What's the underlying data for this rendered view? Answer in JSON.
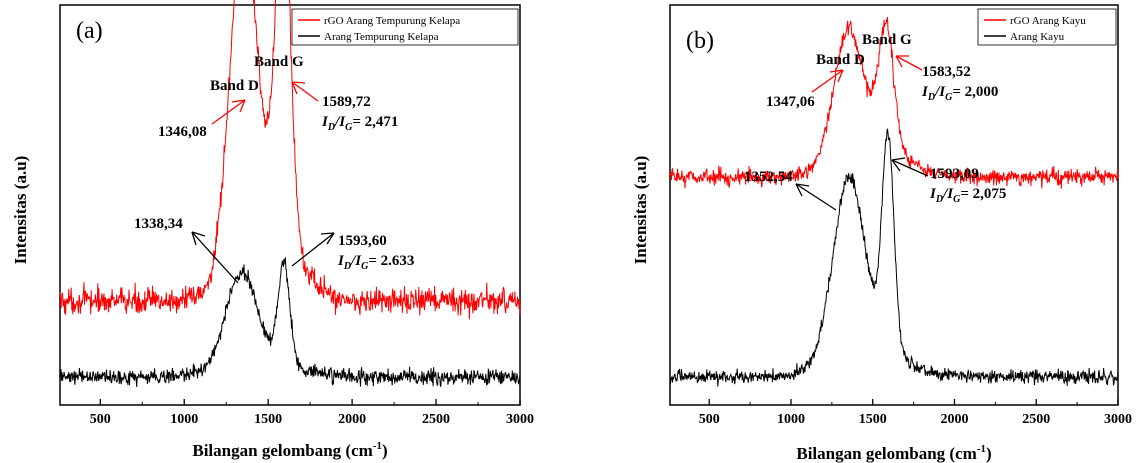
{
  "chart_data": [
    {
      "type": "line",
      "panel_label": "(a)",
      "xlabel": "Bilangan gelombang (cm",
      "xlabel_sup": "-1",
      "xlabel_end": ")",
      "ylabel": "Intensitas (a.u)",
      "xlim": [
        260,
        3000
      ],
      "xticks": [
        "500",
        "1000",
        "1500",
        "2000",
        "2500",
        "3000"
      ],
      "grid": false,
      "legend_position": "top-right",
      "series": [
        {
          "name": "rGO Arang Tempurung Kelapa",
          "color": "#ff0000",
          "baseline": 0.26,
          "noise": 0.055,
          "peaks": [
            [
              1346.08,
              0.75,
              75
            ],
            [
              1589.72,
              0.85,
              42
            ],
            [
              1480,
              0.28,
              160
            ]
          ]
        },
        {
          "name": "Arang Tempurung Kelapa",
          "color": "#000000",
          "baseline": 0.07,
          "noise": 0.033,
          "peaks": [
            [
              1338.34,
              0.22,
              90
            ],
            [
              1593.6,
              0.25,
              34
            ],
            [
              1450,
              0.05,
              200
            ]
          ]
        }
      ],
      "annotations": {
        "band_d": "Band D",
        "band_g": "Band G",
        "red_d_peak": "1346,08",
        "red_g_peak": "1589,72",
        "red_ratio": "= 2,471",
        "black_d_peak": "1338,34",
        "black_g_peak": "1593,60",
        "black_ratio": "= 2.633"
      }
    },
    {
      "type": "line",
      "panel_label": "(b)",
      "xlabel": "Bilangan gelombang (cm",
      "xlabel_sup": "-1",
      "xlabel_end": ")",
      "ylabel": "Intensitas (a.u)",
      "xlim": [
        260,
        3000
      ],
      "xticks": [
        "500",
        "1000",
        "1500",
        "2000",
        "2500",
        "3000"
      ],
      "grid": false,
      "legend_position": "top-right",
      "series": [
        {
          "name": "rGO Arang Kayu",
          "color": "#ff0000",
          "baseline": 0.57,
          "noise": 0.035,
          "peaks": [
            [
              1347.06,
              0.28,
              85
            ],
            [
              1583.52,
              0.29,
              45
            ],
            [
              1470,
              0.11,
              180
            ]
          ]
        },
        {
          "name": "Arang Kayu",
          "color": "#000000",
          "baseline": 0.07,
          "noise": 0.028,
          "peaks": [
            [
              1352.54,
              0.42,
              95
            ],
            [
              1593.09,
              0.53,
              36
            ],
            [
              1460,
              0.09,
              200
            ]
          ]
        }
      ],
      "annotations": {
        "band_d": "Band D",
        "band_g": "Band G",
        "red_d_peak": "1347,06",
        "red_g_peak": "1583,52",
        "red_ratio": "= 2,000",
        "black_d_peak": "1352,54",
        "black_g_peak": "1593,09",
        "black_ratio": "= 2,075"
      }
    }
  ],
  "ratio_label": {
    "i": "I",
    "d": "D",
    "slash": "/",
    "g": "G"
  }
}
